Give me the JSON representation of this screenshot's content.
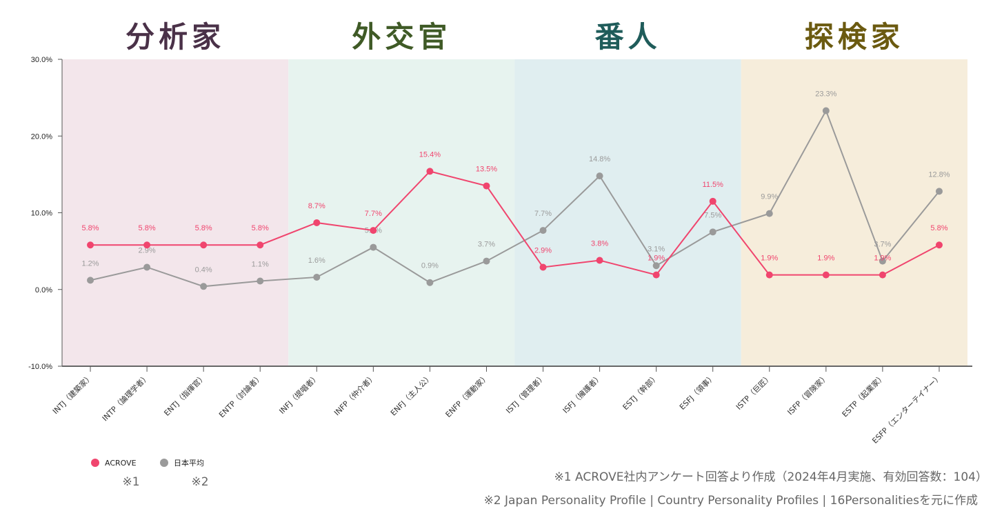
{
  "chart_data": {
    "type": "line",
    "groups": [
      {
        "name": "分析家",
        "color": "#4a3148",
        "band": "#f3e6eb"
      },
      {
        "name": "外交官",
        "color": "#3f5a26",
        "band": "#e7f3ef"
      },
      {
        "name": "番人",
        "color": "#1f5c5a",
        "band": "#e0eef0"
      },
      {
        "name": "探検家",
        "color": "#6b5a10",
        "band": "#f6eddb"
      }
    ],
    "categories": [
      "INTJ（建築家）",
      "INTP（論理学者）",
      "ENTJ（指揮官）",
      "ENTP（討論者）",
      "INFJ（提唱者）",
      "INFP（仲介者）",
      "ENFJ（主人公）",
      "ENFP（運動家）",
      "ISTJ（管理者）",
      "ISFJ（擁護者）",
      "ESTJ（幹部）",
      "ESFJ（領事）",
      "ISTP（巨匠）",
      "ISFP（冒険家）",
      "ESTP（起業家）",
      "ESFP（エンターテイナー）"
    ],
    "series": [
      {
        "name": "ACROVE",
        "note": "※1",
        "color": "#f0456e",
        "values": [
          5.8,
          5.8,
          5.8,
          5.8,
          8.7,
          7.7,
          15.4,
          13.5,
          2.9,
          3.8,
          1.9,
          11.5,
          1.9,
          1.9,
          1.9,
          5.8
        ],
        "labels": [
          "5.8%",
          "5.8%",
          "5.8%",
          "5.8%",
          "8.7%",
          "7.7%",
          "15.4%",
          "13.5%",
          "2.9%",
          "3.8%",
          "1.9%",
          "11.5%",
          "1.9%",
          "1.9%",
          "1.9%",
          "5.8%"
        ]
      },
      {
        "name": "日本平均",
        "note": "※2",
        "color": "#9a9a9a",
        "values": [
          1.2,
          2.9,
          0.4,
          1.1,
          1.6,
          5.5,
          0.9,
          3.7,
          7.7,
          14.8,
          3.1,
          7.5,
          9.9,
          23.3,
          3.7,
          12.8
        ],
        "labels": [
          "1.2%",
          "2.9%",
          "0.4%",
          "1.1%",
          "1.6%",
          "5.5%",
          "0.9%",
          "3.7%",
          "7.7%",
          "14.8%",
          "3.1%",
          "7.5%",
          "9.9%",
          "23.3%",
          "3.7%",
          "12.8%"
        ]
      }
    ],
    "ylim": [
      -10,
      30
    ],
    "yticks": [
      "30.0%",
      "20.0%",
      "10.0%",
      "0.0%",
      "-10.0%"
    ],
    "ytick_values": [
      30,
      20,
      10,
      0,
      -10
    ],
    "legend_position": "bottom-left",
    "footnotes": [
      "※1 ACROVE社内アンケート回答より作成（2024年4月実施、有効回答数：104）",
      "※2 Japan Personality Profile | Country Personality Profiles | 16Personalitiesを元に作成"
    ]
  }
}
